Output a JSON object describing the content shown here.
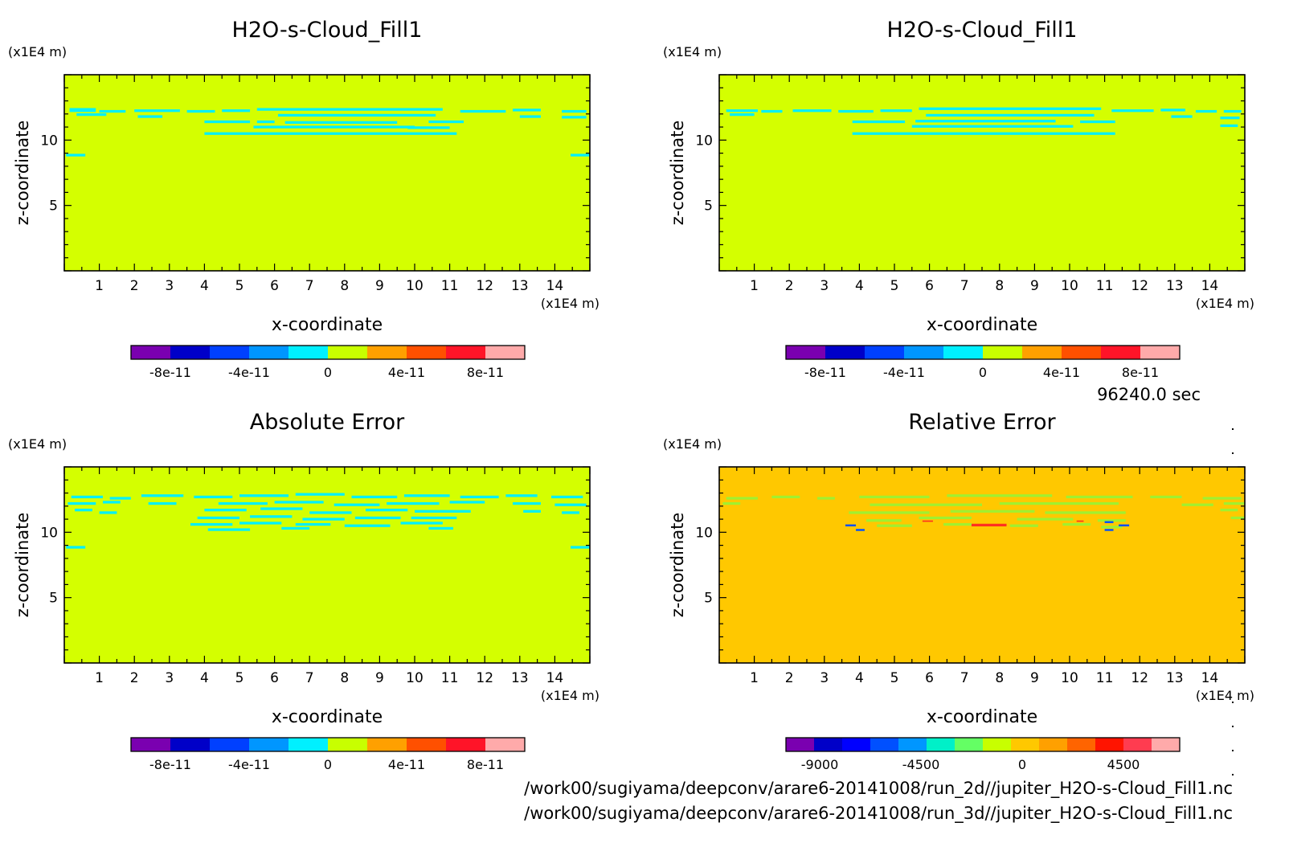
{
  "figure": {
    "time_label": "96240.0 sec",
    "file_paths": [
      "/work00/sugiyama/deepconv/arare6-20141008/run_2d//jupiter_H2O-s-Cloud_Fill1.nc",
      "/work00/sugiyama/deepconv/arare6-20141008/run_3d//jupiter_H2O-s-Cloud_Fill1.nc"
    ]
  },
  "colors": {
    "background": "#d4ff00",
    "cloud": "#00f0ff",
    "relative_background": "#ffc800",
    "relative_cloud": "#a0f030",
    "relative_neg": "#0050ff",
    "relative_pos": "#ff3020"
  },
  "chart_data": [
    {
      "type": "heatmap",
      "title": "H2O-s-Cloud_Fill1",
      "xlabel": "x-coordinate",
      "ylabel": "z-coordinate",
      "x_unit": "(x1E4 m)",
      "y_unit": "(x1E4 m)",
      "xlim": [
        0,
        15
      ],
      "ylim": [
        0,
        15
      ],
      "xticks": [
        1,
        2,
        3,
        4,
        5,
        6,
        7,
        8,
        9,
        10,
        11,
        12,
        13,
        14
      ],
      "yticks": [
        5,
        10
      ],
      "field": "cloud_a",
      "colorbar": {
        "colors": [
          "#7a00b0",
          "#0000c8",
          "#0040ff",
          "#0096ff",
          "#00f0ff",
          "#c8ff00",
          "#ffa000",
          "#ff5000",
          "#ff1428",
          "#ffaaaa"
        ],
        "ticks": [
          -8e-11,
          -4e-11,
          0,
          4e-11,
          8e-11
        ],
        "tick_labels": [
          "-8e-11",
          "-4e-11",
          "0",
          "4e-11",
          "8e-11"
        ],
        "range": [
          -1e-10,
          1e-10
        ]
      }
    },
    {
      "type": "heatmap",
      "title": "H2O-s-Cloud_Fill1",
      "xlabel": "x-coordinate",
      "ylabel": "z-coordinate",
      "x_unit": "(x1E4 m)",
      "y_unit": "(x1E4 m)",
      "xlim": [
        0,
        15
      ],
      "ylim": [
        0,
        15
      ],
      "xticks": [
        1,
        2,
        3,
        4,
        5,
        6,
        7,
        8,
        9,
        10,
        11,
        12,
        13,
        14
      ],
      "yticks": [
        5,
        10
      ],
      "field": "cloud_b",
      "colorbar": {
        "colors": [
          "#7a00b0",
          "#0000c8",
          "#0040ff",
          "#0096ff",
          "#00f0ff",
          "#c8ff00",
          "#ffa000",
          "#ff5000",
          "#ff1428",
          "#ffaaaa"
        ],
        "ticks": [
          -8e-11,
          -4e-11,
          0,
          4e-11,
          8e-11
        ],
        "tick_labels": [
          "-8e-11",
          "-4e-11",
          "0",
          "4e-11",
          "8e-11"
        ],
        "range": [
          -1e-10,
          1e-10
        ]
      }
    },
    {
      "type": "heatmap",
      "title": "Absolute Error",
      "xlabel": "x-coordinate",
      "ylabel": "z-coordinate",
      "x_unit": "(x1E4 m)",
      "y_unit": "(x1E4 m)",
      "xlim": [
        0,
        15
      ],
      "ylim": [
        0,
        15
      ],
      "xticks": [
        1,
        2,
        3,
        4,
        5,
        6,
        7,
        8,
        9,
        10,
        11,
        12,
        13,
        14
      ],
      "yticks": [
        5,
        10
      ],
      "field": "abs_err",
      "colorbar": {
        "colors": [
          "#7a00b0",
          "#0000c8",
          "#0040ff",
          "#0096ff",
          "#00f0ff",
          "#c8ff00",
          "#ffa000",
          "#ff5000",
          "#ff1428",
          "#ffaaaa"
        ],
        "ticks": [
          -8e-11,
          -4e-11,
          0,
          4e-11,
          8e-11
        ],
        "tick_labels": [
          "-8e-11",
          "-4e-11",
          "0",
          "4e-11",
          "8e-11"
        ],
        "range": [
          -1e-10,
          1e-10
        ]
      }
    },
    {
      "type": "heatmap",
      "title": "Relative Error",
      "xlabel": "x-coordinate",
      "ylabel": "z-coordinate",
      "x_unit": "(x1E4 m)",
      "y_unit": "(x1E4 m)",
      "xlim": [
        0,
        15
      ],
      "ylim": [
        0,
        15
      ],
      "xticks": [
        1,
        2,
        3,
        4,
        5,
        6,
        7,
        8,
        9,
        10,
        11,
        12,
        13,
        14
      ],
      "yticks": [
        5,
        10
      ],
      "field": "rel_err",
      "colorbar": {
        "colors": [
          "#7a00b0",
          "#0000c8",
          "#0000ff",
          "#0050ff",
          "#0096ff",
          "#00f0c8",
          "#64ff64",
          "#c8ff00",
          "#ffc800",
          "#ffa000",
          "#ff6400",
          "#ff1400",
          "#ff3c50",
          "#ffaaaa"
        ],
        "ticks": [
          -9000,
          -4500,
          0,
          4500
        ],
        "tick_labels": [
          "-9000",
          "-4500",
          "0",
          "4500"
        ],
        "range": [
          -10500,
          7000
        ]
      }
    }
  ]
}
